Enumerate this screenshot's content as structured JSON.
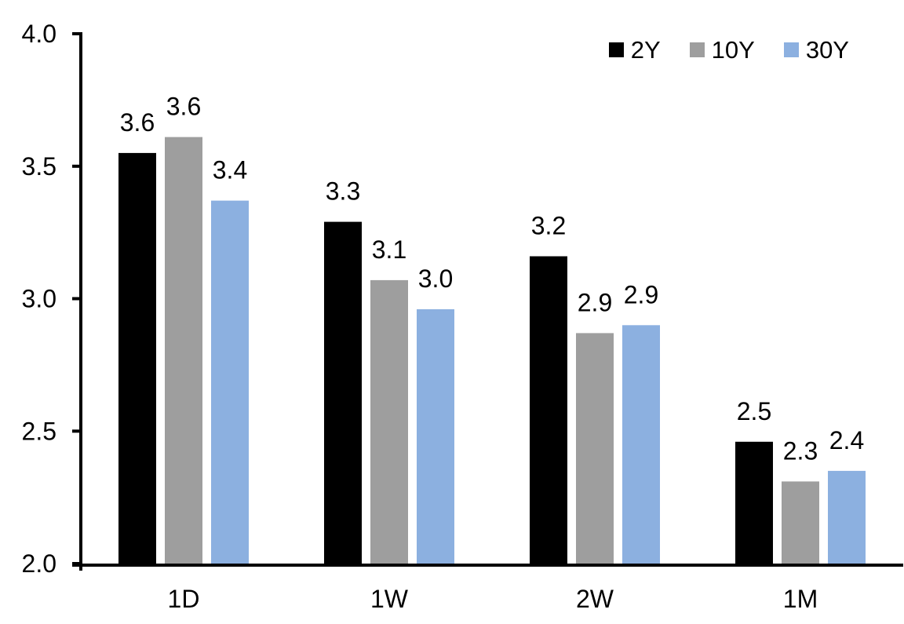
{
  "chart_data": {
    "type": "bar",
    "title": "",
    "xlabel": "",
    "ylabel": "",
    "categories": [
      "1D",
      "1W",
      "2W",
      "1M"
    ],
    "series": [
      {
        "name": "2Y",
        "color": "#000000",
        "values": [
          3.55,
          3.29,
          3.16,
          2.46
        ],
        "labels": [
          "3.6",
          "3.3",
          "3.2",
          "2.5"
        ]
      },
      {
        "name": "10Y",
        "color": "#9E9E9E",
        "values": [
          3.61,
          3.07,
          2.87,
          2.31
        ],
        "labels": [
          "3.6",
          "3.1",
          "2.9",
          "2.3"
        ]
      },
      {
        "name": "30Y",
        "color": "#8CB0E0",
        "values": [
          3.37,
          2.96,
          2.9,
          2.35
        ],
        "labels": [
          "3.4",
          "3.0",
          "2.9",
          "2.4"
        ]
      }
    ],
    "ylim": [
      2.0,
      4.0
    ],
    "yticks": [
      2.0,
      2.5,
      3.0,
      3.5,
      4.0
    ],
    "ytick_labels": [
      "2.0",
      "2.5",
      "3.0",
      "3.5",
      "4.0"
    ],
    "grid": false,
    "legend_position": "top-right",
    "axis_color": "#000000",
    "background_color": "#ffffff"
  }
}
